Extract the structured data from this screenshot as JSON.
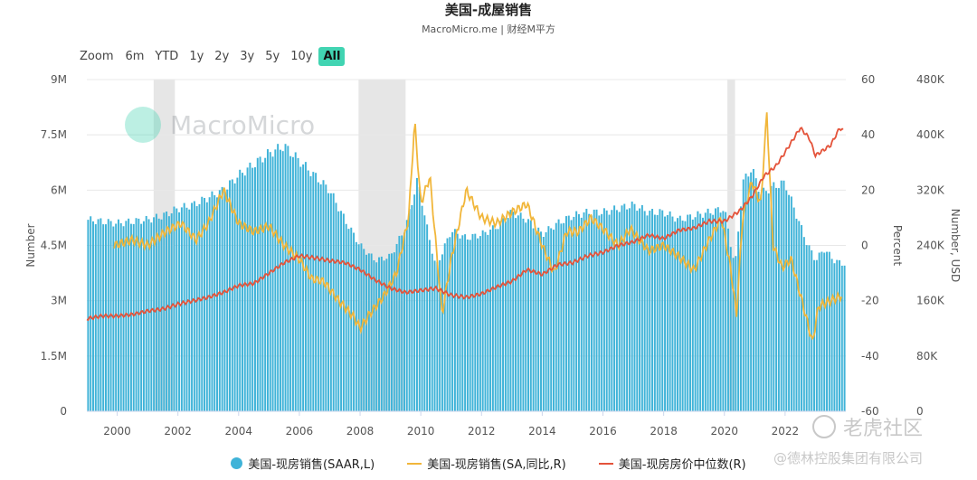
{
  "title": "美国-成屋销售",
  "subtitle": "MacroMicro.me | 财经M平方",
  "zoom": {
    "label": "Zoom",
    "buttons": [
      "6m",
      "YTD",
      "1y",
      "2y",
      "3y",
      "5y",
      "10y",
      "All"
    ],
    "active": "All"
  },
  "watermark": "MacroMicro",
  "credit_line1": "老虎社区",
  "credit_line2": "@德林控股集团有限公司",
  "colors": {
    "bars": "#3fb3d8",
    "yoy": "#f1b63a",
    "price": "#e4533a",
    "recession": "#e6e6e6"
  },
  "legend": [
    {
      "name": "美国-现房销售(SAAR,L)",
      "marker": "dot",
      "color": "#3fb3d8"
    },
    {
      "name": "美国-现房销售(SA,同比,R)",
      "marker": "line",
      "color": "#f1b63a"
    },
    {
      "name": "美国-现房房价中位数(R)",
      "marker": "line",
      "color": "#e4533a"
    }
  ],
  "chart_data": {
    "type": "bar",
    "x_ticks": [
      "2000",
      "2002",
      "2004",
      "2006",
      "2008",
      "2010",
      "2012",
      "2014",
      "2016",
      "2018",
      "2020",
      "2022"
    ],
    "y_left": {
      "label": "Number",
      "ticks": [
        "0",
        "1.5M",
        "3M",
        "4.5M",
        "6M",
        "7.5M",
        "9M"
      ],
      "range": [
        0,
        9000000
      ]
    },
    "y_right1": {
      "label": "Percent",
      "ticks": [
        "-60",
        "-40",
        "-20",
        "0",
        "20",
        "40",
        "60"
      ],
      "range": [
        -60,
        60
      ]
    },
    "y_right2": {
      "label": "Number, USD",
      "ticks": [
        "0",
        "80K",
        "160K",
        "240K",
        "320K",
        "400K",
        "480K"
      ],
      "range": [
        0,
        480000
      ]
    },
    "recessions": [
      [
        2001.2,
        2001.9
      ],
      [
        2007.95,
        2009.5
      ],
      [
        2020.1,
        2020.35
      ]
    ],
    "series": [
      {
        "name": "美国-现房销售(SAAR,L)",
        "type": "bar",
        "points": [
          [
            1999.0,
            5200000
          ],
          [
            1999.5,
            5150000
          ],
          [
            2000.0,
            5100000
          ],
          [
            2000.5,
            5150000
          ],
          [
            2001.0,
            5200000
          ],
          [
            2001.5,
            5300000
          ],
          [
            2002.0,
            5500000
          ],
          [
            2002.5,
            5600000
          ],
          [
            2003.0,
            5800000
          ],
          [
            2003.5,
            6000000
          ],
          [
            2004.0,
            6400000
          ],
          [
            2004.5,
            6700000
          ],
          [
            2005.0,
            7000000
          ],
          [
            2005.5,
            7200000
          ],
          [
            2006.0,
            6800000
          ],
          [
            2006.5,
            6400000
          ],
          [
            2007.0,
            6000000
          ],
          [
            2007.5,
            5200000
          ],
          [
            2008.0,
            4500000
          ],
          [
            2008.5,
            4100000
          ],
          [
            2009.0,
            4200000
          ],
          [
            2009.5,
            5000000
          ],
          [
            2009.9,
            6300000
          ],
          [
            2010.2,
            5000000
          ],
          [
            2010.5,
            3900000
          ],
          [
            2011.0,
            4900000
          ],
          [
            2011.5,
            4700000
          ],
          [
            2012.0,
            4800000
          ],
          [
            2012.5,
            5000000
          ],
          [
            2013.0,
            5400000
          ],
          [
            2013.5,
            5200000
          ],
          [
            2014.0,
            4800000
          ],
          [
            2014.5,
            5100000
          ],
          [
            2015.0,
            5300000
          ],
          [
            2015.5,
            5400000
          ],
          [
            2016.0,
            5400000
          ],
          [
            2016.5,
            5500000
          ],
          [
            2017.0,
            5600000
          ],
          [
            2017.5,
            5400000
          ],
          [
            2018.0,
            5400000
          ],
          [
            2018.5,
            5200000
          ],
          [
            2019.0,
            5300000
          ],
          [
            2019.5,
            5400000
          ],
          [
            2020.0,
            5500000
          ],
          [
            2020.35,
            3900000
          ],
          [
            2020.6,
            6200000
          ],
          [
            2020.9,
            6600000
          ],
          [
            2021.2,
            5900000
          ],
          [
            2021.6,
            6100000
          ],
          [
            2022.0,
            6200000
          ],
          [
            2022.3,
            5500000
          ],
          [
            2022.7,
            4600000
          ],
          [
            2023.0,
            4100000
          ],
          [
            2023.3,
            4400000
          ],
          [
            2023.6,
            4100000
          ],
          [
            2023.9,
            4000000
          ]
        ]
      },
      {
        "name": "美国-现房销售(SA,同比,R)",
        "type": "line",
        "points": [
          [
            1999.9,
            0
          ],
          [
            2000.5,
            2
          ],
          [
            2001.0,
            0
          ],
          [
            2001.6,
            5
          ],
          [
            2002.1,
            8
          ],
          [
            2002.6,
            2
          ],
          [
            2003.0,
            8
          ],
          [
            2003.5,
            20
          ],
          [
            2004.0,
            8
          ],
          [
            2004.5,
            5
          ],
          [
            2005.0,
            7
          ],
          [
            2005.5,
            0
          ],
          [
            2006.0,
            -5
          ],
          [
            2006.4,
            -12
          ],
          [
            2006.8,
            -13
          ],
          [
            2007.3,
            -20
          ],
          [
            2007.8,
            -26
          ],
          [
            2008.0,
            -30
          ],
          [
            2008.3,
            -25
          ],
          [
            2008.8,
            -18
          ],
          [
            2009.2,
            -10
          ],
          [
            2009.6,
            10
          ],
          [
            2009.8,
            45
          ],
          [
            2010.0,
            15
          ],
          [
            2010.3,
            25
          ],
          [
            2010.7,
            -25
          ],
          [
            2011.0,
            -5
          ],
          [
            2011.5,
            20
          ],
          [
            2012.0,
            10
          ],
          [
            2012.5,
            8
          ],
          [
            2013.0,
            12
          ],
          [
            2013.5,
            15
          ],
          [
            2014.0,
            0
          ],
          [
            2014.4,
            -10
          ],
          [
            2014.8,
            5
          ],
          [
            2015.2,
            5
          ],
          [
            2015.6,
            10
          ],
          [
            2016.0,
            6
          ],
          [
            2016.5,
            0
          ],
          [
            2016.9,
            6
          ],
          [
            2017.5,
            -2
          ],
          [
            2018.0,
            0
          ],
          [
            2018.5,
            -4
          ],
          [
            2019.0,
            -9
          ],
          [
            2019.5,
            2
          ],
          [
            2019.9,
            10
          ],
          [
            2020.2,
            -8
          ],
          [
            2020.4,
            -25
          ],
          [
            2020.6,
            10
          ],
          [
            2020.9,
            23
          ],
          [
            2021.2,
            15
          ],
          [
            2021.4,
            48
          ],
          [
            2021.6,
            0
          ],
          [
            2021.9,
            -8
          ],
          [
            2022.2,
            -5
          ],
          [
            2022.6,
            -22
          ],
          [
            2022.9,
            -35
          ],
          [
            2023.1,
            -22
          ],
          [
            2023.5,
            -20
          ],
          [
            2023.9,
            -18
          ]
        ]
      },
      {
        "name": "美国-现房房价中位数(R)",
        "type": "line",
        "points": [
          [
            1999.0,
            134000
          ],
          [
            1999.5,
            138000
          ],
          [
            2000.0,
            138000
          ],
          [
            2000.5,
            140000
          ],
          [
            2001.0,
            145000
          ],
          [
            2001.5,
            148000
          ],
          [
            2002.0,
            155000
          ],
          [
            2002.5,
            160000
          ],
          [
            2003.0,
            165000
          ],
          [
            2003.5,
            172000
          ],
          [
            2004.0,
            182000
          ],
          [
            2004.5,
            185000
          ],
          [
            2005.0,
            200000
          ],
          [
            2005.5,
            215000
          ],
          [
            2006.0,
            225000
          ],
          [
            2006.5,
            222000
          ],
          [
            2007.0,
            218000
          ],
          [
            2007.5,
            215000
          ],
          [
            2008.0,
            205000
          ],
          [
            2008.5,
            190000
          ],
          [
            2009.0,
            178000
          ],
          [
            2009.5,
            172000
          ],
          [
            2010.0,
            175000
          ],
          [
            2010.5,
            178000
          ],
          [
            2011.0,
            168000
          ],
          [
            2011.5,
            165000
          ],
          [
            2012.0,
            170000
          ],
          [
            2012.5,
            180000
          ],
          [
            2013.0,
            188000
          ],
          [
            2013.5,
            205000
          ],
          [
            2014.0,
            198000
          ],
          [
            2014.5,
            212000
          ],
          [
            2015.0,
            215000
          ],
          [
            2015.5,
            225000
          ],
          [
            2016.0,
            230000
          ],
          [
            2016.5,
            240000
          ],
          [
            2017.0,
            245000
          ],
          [
            2017.5,
            255000
          ],
          [
            2018.0,
            250000
          ],
          [
            2018.5,
            262000
          ],
          [
            2019.0,
            265000
          ],
          [
            2019.5,
            275000
          ],
          [
            2020.0,
            275000
          ],
          [
            2020.5,
            290000
          ],
          [
            2020.9,
            310000
          ],
          [
            2021.3,
            340000
          ],
          [
            2021.7,
            355000
          ],
          [
            2022.0,
            375000
          ],
          [
            2022.5,
            410000
          ],
          [
            2022.8,
            395000
          ],
          [
            2023.0,
            370000
          ],
          [
            2023.5,
            385000
          ],
          [
            2023.8,
            410000
          ],
          [
            2023.95,
            405000
          ]
        ]
      }
    ]
  }
}
